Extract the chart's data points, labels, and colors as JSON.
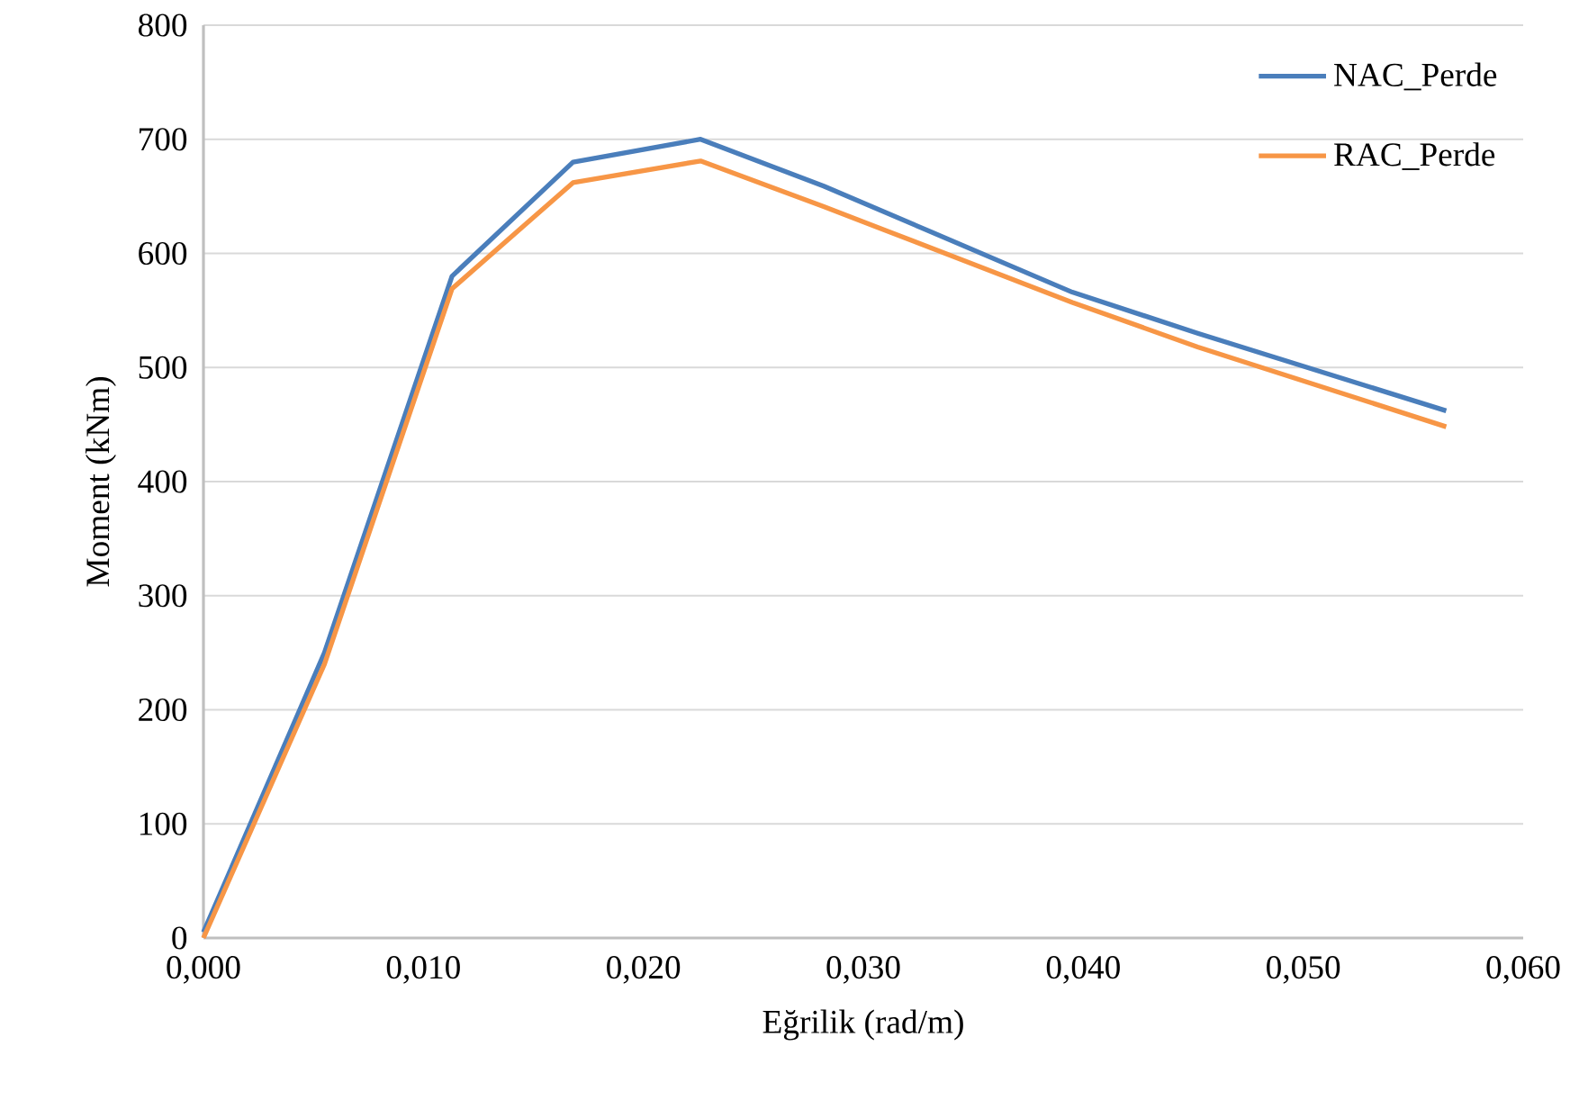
{
  "chart_data": {
    "type": "line",
    "xlabel": "Eğrilik (rad/m)",
    "ylabel": "Moment (kNm)",
    "x": [
      0,
      0.0055,
      0.0113,
      0.0168,
      0.0226,
      0.0282,
      0.0395,
      0.0452,
      0.0565
    ],
    "series": [
      {
        "name": "NAC_Perde",
        "color": "#4a7ebb",
        "values": [
          5,
          250,
          580,
          680,
          700,
          659,
          566,
          530,
          462
        ]
      },
      {
        "name": "RAC_Perde",
        "color": "#f79646",
        "values": [
          0,
          240,
          569,
          662,
          681,
          641,
          557,
          518,
          448
        ]
      }
    ],
    "xlim": [
      0,
      0.06
    ],
    "ylim": [
      0,
      800
    ],
    "xticks": [
      {
        "value": 0,
        "label": "0,000"
      },
      {
        "value": 0.01,
        "label": "0,010"
      },
      {
        "value": 0.02,
        "label": "0,020"
      },
      {
        "value": 0.03,
        "label": "0,030"
      },
      {
        "value": 0.04,
        "label": "0,040"
      },
      {
        "value": 0.05,
        "label": "0,050"
      },
      {
        "value": 0.06,
        "label": "0,060"
      }
    ],
    "yticks": [
      0,
      100,
      200,
      300,
      400,
      500,
      600,
      700,
      800
    ],
    "grid": "y",
    "legend": "top right",
    "line_style": "solid"
  }
}
